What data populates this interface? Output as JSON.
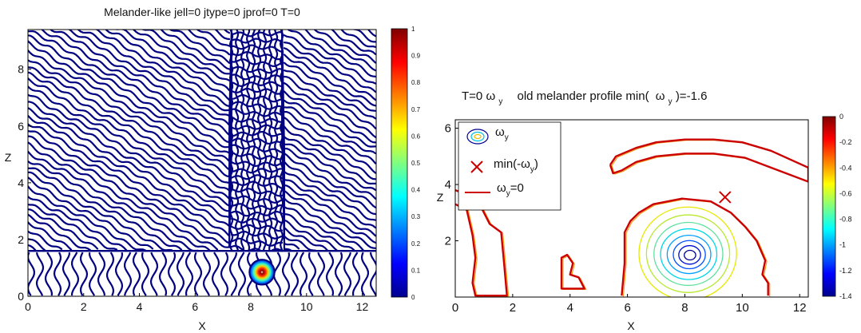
{
  "chart_data": [
    {
      "type": "heatmap",
      "title": "Melander-like jell=0 jtype=0 jprof=0 T=0",
      "xlabel": "X",
      "ylabel": "Z",
      "xlim": [
        0,
        12.5
      ],
      "ylim": [
        0,
        9.4
      ],
      "xticks": [
        "0",
        "2",
        "4",
        "6",
        "8",
        "10",
        "12"
      ],
      "yticks": [
        "0",
        "2",
        "4",
        "6",
        "8"
      ],
      "colorbar": {
        "range": [
          0,
          1
        ],
        "ticks": [
          "0",
          "0.1",
          "0.2",
          "0.3",
          "0.4",
          "0.5",
          "0.6",
          "0.7",
          "0.8",
          "0.9",
          "1"
        ]
      },
      "feature": {
        "kind": "vortex-blob",
        "x": 8.4,
        "z": 0.85,
        "radius": 0.45
      },
      "contour_color": "#000080"
    },
    {
      "type": "line",
      "title_parts": {
        "t": "T=0",
        "omega_y": "ω",
        "sub_y": "y",
        "mid": "old melander profile  min(",
        "omega2": "ω",
        "sub2": "y",
        "end": ")=-1.6"
      },
      "xlabel": "X",
      "ylabel": "Z",
      "xlim": [
        0,
        12.3
      ],
      "ylim": [
        0,
        6.3
      ],
      "xticks": [
        "0",
        "2",
        "4",
        "6",
        "8",
        "10",
        "12"
      ],
      "yticks": [
        "2",
        "4",
        "6"
      ],
      "legend": {
        "placement": "top-left",
        "entries": [
          {
            "sym": "ω",
            "sub": "y",
            "rest": ""
          },
          {
            "sym": "min(-ω",
            "sub": "y",
            "rest": ")"
          },
          {
            "sym": "ω",
            "sub": "y",
            "rest": "=0"
          }
        ]
      },
      "marker_x": {
        "x": 9.4,
        "y": 3.55,
        "color": "#cc0000"
      },
      "colorbar": {
        "range": [
          -1.4,
          0
        ],
        "ticks": [
          "0",
          "-0.2",
          "-0.4",
          "-0.6",
          "-0.8",
          "-1",
          "-1.2",
          "-1.4"
        ]
      },
      "zero_contours": [
        {
          "name": "left-column",
          "points": [
            [
              0,
              3.3
            ],
            [
              0.4,
              3.1
            ],
            [
              0.6,
              2.2
            ],
            [
              0.7,
              1.4
            ],
            [
              0.6,
              0.5
            ],
            [
              0.7,
              0.05
            ],
            [
              1.8,
              0.05
            ],
            [
              1.7,
              1.2
            ],
            [
              1.6,
              2.3
            ],
            [
              1.2,
              2.6
            ],
            [
              0.9,
              3.2
            ],
            [
              0.5,
              3.6
            ],
            [
              0,
              3.8
            ]
          ]
        },
        {
          "name": "small-bump",
          "points": [
            [
              3.7,
              0.7
            ],
            [
              3.7,
              1.4
            ],
            [
              3.9,
              1.5
            ],
            [
              4.1,
              1.2
            ],
            [
              4.0,
              0.8
            ],
            [
              4.3,
              0.7
            ],
            [
              4.5,
              0.3
            ],
            [
              3.7,
              0.3
            ],
            [
              3.7,
              0.7
            ]
          ]
        },
        {
          "name": "big-lobe",
          "points": [
            [
              5.8,
              0.05
            ],
            [
              5.9,
              1.2
            ],
            [
              5.9,
              2.3
            ],
            [
              6.1,
              2.7
            ],
            [
              6.4,
              3.0
            ],
            [
              6.9,
              3.3
            ],
            [
              7.9,
              3.5
            ],
            [
              8.9,
              3.4
            ],
            [
              9.6,
              3.0
            ],
            [
              10.1,
              2.5
            ],
            [
              10.5,
              2.0
            ],
            [
              10.8,
              1.3
            ],
            [
              10.7,
              0.8
            ],
            [
              10.9,
              0.5
            ],
            [
              10.9,
              0.05
            ]
          ]
        },
        {
          "name": "upper-arc",
          "points": [
            [
              5.4,
              4.7
            ],
            [
              5.6,
              5.0
            ],
            [
              6.3,
              5.3
            ],
            [
              7.0,
              5.5
            ],
            [
              8.0,
              5.6
            ],
            [
              9.0,
              5.6
            ],
            [
              10.0,
              5.5
            ],
            [
              11.0,
              5.2
            ],
            [
              12.3,
              4.6
            ],
            [
              12.3,
              4.1
            ],
            [
              11.0,
              4.6
            ],
            [
              10.1,
              4.95
            ],
            [
              9.0,
              5.1
            ],
            [
              8.0,
              5.1
            ],
            [
              7.0,
              5.0
            ],
            [
              6.3,
              4.8
            ],
            [
              5.8,
              4.5
            ],
            [
              5.5,
              4.4
            ],
            [
              5.4,
              4.7
            ]
          ]
        }
      ],
      "vorticity_levels": [
        {
          "rx": 1.7,
          "ry": 1.65,
          "color": "#e8e800"
        },
        {
          "rx": 1.45,
          "ry": 1.38,
          "color": "#b8e830"
        },
        {
          "rx": 1.2,
          "ry": 1.12,
          "color": "#60e0a0"
        },
        {
          "rx": 0.98,
          "ry": 0.9,
          "color": "#00d8e8"
        },
        {
          "rx": 0.76,
          "ry": 0.68,
          "color": "#00a0ff"
        },
        {
          "rx": 0.56,
          "ry": 0.5,
          "color": "#0050ff"
        },
        {
          "rx": 0.38,
          "ry": 0.33,
          "color": "#0010d0"
        },
        {
          "rx": 0.2,
          "ry": 0.17,
          "color": "#000090"
        }
      ],
      "vortex_center": {
        "x": 8.1,
        "y": 1.55
      }
    }
  ]
}
